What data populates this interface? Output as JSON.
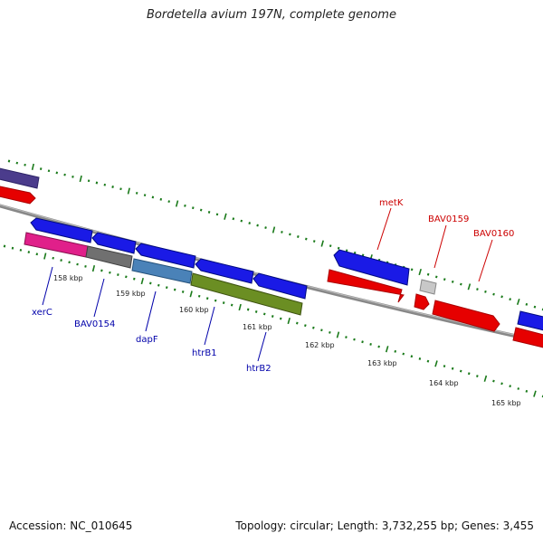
{
  "title": "Bordetella avium 197N, complete genome",
  "footer": {
    "accession": "Accession: NC_010645",
    "topology": "Topology: circular; Length: 3,732,255 bp; Genes: 3,455"
  },
  "scale_labels": [
    "158 kbp",
    "159 kbp",
    "160 kbp",
    "161 kbp",
    "162 kbp",
    "163 kbp",
    "164 kbp",
    "165 kbp"
  ],
  "gene_labels": {
    "xerC": "xerC",
    "BAV0154": "BAV0154",
    "dapF": "dapF",
    "htrB1": "htrB1",
    "htrB2": "htrB2",
    "metK": "metK",
    "BAV0159": "BAV0159",
    "BAV0160": "BAV0160"
  },
  "colors": {
    "forward_cds": "#1a1ae6",
    "reverse_cds": "#e60000",
    "backbone": "#888888",
    "tick": "#1a7a1a",
    "label_blue": "#0000aa",
    "label_red": "#cc0000",
    "xerC_feature": "#e0208a",
    "BAV0154_feature": "#707070",
    "dapF_feature": "#4a82b8",
    "htrB_feature": "#6b8e23",
    "purple_feature": "#4b3c8c",
    "grey_feature": "#c8c8c8"
  }
}
